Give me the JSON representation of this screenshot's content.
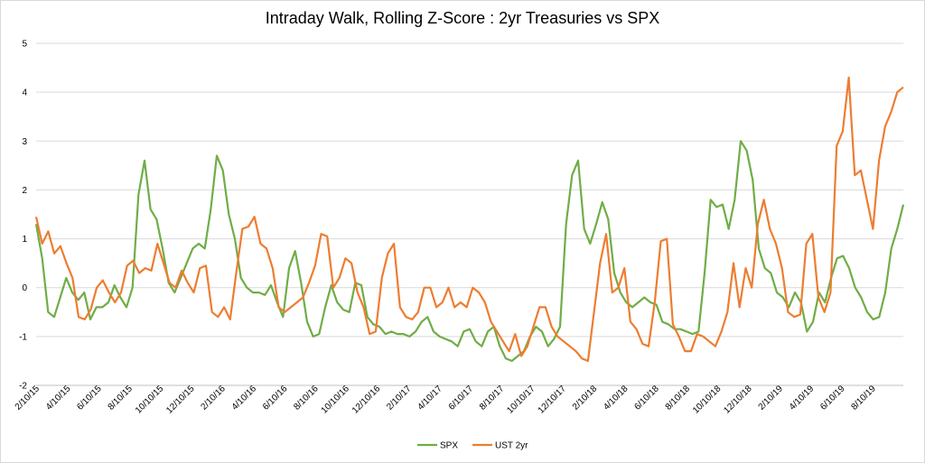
{
  "chart_data": {
    "type": "line",
    "title": "Intraday Walk, Rolling Z-Score : 2yr Treasuries vs SPX",
    "xlabel": "",
    "ylabel": "",
    "ylim": [
      -2,
      5
    ],
    "yticks": [
      -2,
      -1,
      0,
      1,
      2,
      3,
      4,
      5
    ],
    "x_tick_labels": [
      "2/10/15",
      "4/10/15",
      "6/10/15",
      "8/10/15",
      "10/10/15",
      "12/10/15",
      "2/10/16",
      "4/10/16",
      "6/10/16",
      "8/10/16",
      "10/10/16",
      "12/10/16",
      "2/10/17",
      "4/10/17",
      "6/10/17",
      "8/10/17",
      "10/10/17",
      "12/10/17",
      "2/10/18",
      "4/10/18",
      "6/10/18",
      "8/10/18",
      "10/10/18",
      "12/10/18",
      "2/10/19",
      "4/10/19",
      "6/10/19",
      "8/10/19"
    ],
    "grid": true,
    "legend_position": "bottom",
    "series": [
      {
        "name": "SPX",
        "color": "#70ad47",
        "values": [
          1.3,
          0.6,
          -0.5,
          -0.6,
          -0.2,
          0.2,
          -0.1,
          -0.25,
          -0.1,
          -0.65,
          -0.4,
          -0.4,
          -0.3,
          0.05,
          -0.2,
          -0.4,
          0.0,
          1.9,
          2.6,
          1.6,
          1.4,
          0.8,
          0.1,
          -0.1,
          0.2,
          0.5,
          0.8,
          0.9,
          0.8,
          1.6,
          2.7,
          2.4,
          1.5,
          1.0,
          0.2,
          0.0,
          -0.1,
          -0.1,
          -0.15,
          0.05,
          -0.3,
          -0.6,
          0.4,
          0.75,
          0.1,
          -0.7,
          -1.0,
          -0.95,
          -0.4,
          0.05,
          -0.3,
          -0.45,
          -0.5,
          0.1,
          0.05,
          -0.6,
          -0.75,
          -0.8,
          -0.95,
          -0.9,
          -0.95,
          -0.95,
          -1.0,
          -0.9,
          -0.7,
          -0.6,
          -0.9,
          -1.0,
          -1.05,
          -1.1,
          -1.2,
          -0.9,
          -0.85,
          -1.1,
          -1.2,
          -0.9,
          -0.8,
          -1.2,
          -1.45,
          -1.5,
          -1.4,
          -1.3,
          -1.0,
          -0.8,
          -0.9,
          -1.2,
          -1.05,
          -0.8,
          1.3,
          2.3,
          2.6,
          1.2,
          0.9,
          1.3,
          1.75,
          1.4,
          0.3,
          -0.1,
          -0.3,
          -0.4,
          -0.3,
          -0.2,
          -0.3,
          -0.35,
          -0.7,
          -0.75,
          -0.85,
          -0.85,
          -0.9,
          -0.95,
          -0.9,
          0.3,
          1.8,
          1.65,
          1.7,
          1.2,
          1.8,
          3.0,
          2.8,
          2.2,
          0.8,
          0.4,
          0.3,
          -0.1,
          -0.2,
          -0.4,
          -0.1,
          -0.3,
          -0.9,
          -0.7,
          -0.1,
          -0.3,
          0.2,
          0.6,
          0.65,
          0.4,
          0.0,
          -0.2,
          -0.5,
          -0.65,
          -0.6,
          -0.1,
          0.8,
          1.2,
          1.7
        ]
      },
      {
        "name": "UST 2yr",
        "color": "#ed7d31",
        "values": [
          1.45,
          0.9,
          1.15,
          0.7,
          0.85,
          0.5,
          0.2,
          -0.6,
          -0.65,
          -0.45,
          0.0,
          0.15,
          -0.1,
          -0.3,
          -0.1,
          0.45,
          0.55,
          0.3,
          0.4,
          0.35,
          0.9,
          0.5,
          0.1,
          0.0,
          0.35,
          0.1,
          -0.1,
          0.4,
          0.45,
          -0.5,
          -0.6,
          -0.4,
          -0.65,
          0.3,
          1.2,
          1.25,
          1.45,
          0.9,
          0.8,
          0.4,
          -0.4,
          -0.5,
          -0.4,
          -0.3,
          -0.2,
          0.1,
          0.45,
          1.1,
          1.05,
          0.0,
          0.2,
          0.6,
          0.5,
          -0.1,
          -0.4,
          -0.95,
          -0.9,
          0.2,
          0.7,
          0.9,
          -0.4,
          -0.6,
          -0.65,
          -0.5,
          0.0,
          0.0,
          -0.4,
          -0.3,
          0.0,
          -0.4,
          -0.3,
          -0.4,
          0.0,
          -0.1,
          -0.3,
          -0.7,
          -0.9,
          -1.1,
          -1.3,
          -0.95,
          -1.4,
          -1.2,
          -0.8,
          -0.4,
          -0.4,
          -0.8,
          -1.0,
          -1.1,
          -1.2,
          -1.3,
          -1.45,
          -1.5,
          -0.5,
          0.5,
          1.1,
          -0.1,
          0.0,
          0.4,
          -0.7,
          -0.85,
          -1.15,
          -1.2,
          -0.3,
          0.95,
          1.0,
          -0.75,
          -1.0,
          -1.3,
          -1.3,
          -0.95,
          -1.0,
          -1.1,
          -1.2,
          -0.9,
          -0.5,
          0.5,
          -0.4,
          0.4,
          0.0,
          1.3,
          1.8,
          1.2,
          0.9,
          0.4,
          -0.5,
          -0.6,
          -0.55,
          0.9,
          1.1,
          -0.2,
          -0.5,
          -0.1,
          2.9,
          3.2,
          4.3,
          2.3,
          2.4,
          1.8,
          1.2,
          2.6,
          3.3,
          3.6,
          4.0,
          4.1
        ]
      }
    ]
  }
}
